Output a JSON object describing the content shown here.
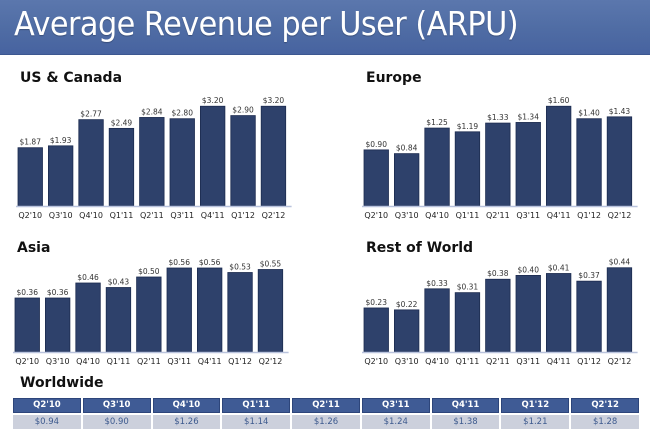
{
  "header": {
    "title": "Average Revenue per User (ARPU)"
  },
  "colors": {
    "header_bg": "#4f6ca4",
    "bar": "#2e416b",
    "table_head": "#3f5b95",
    "table_cell": "#ccd0dc"
  },
  "chart_data": [
    {
      "type": "bar",
      "title": "US & Canada",
      "categories": [
        "Q2'10",
        "Q3'10",
        "Q4'10",
        "Q1'11",
        "Q2'11",
        "Q3'11",
        "Q4'11",
        "Q1'12",
        "Q2'12"
      ],
      "values": [
        1.87,
        1.93,
        2.77,
        2.49,
        2.84,
        2.8,
        3.2,
        2.9,
        3.2
      ],
      "labels": [
        "$1.87",
        "$1.93",
        "$2.77",
        "$2.49",
        "$2.84",
        "$2.80",
        "$3.20",
        "$2.90",
        "$3.20"
      ],
      "xlabel": "",
      "ylabel": "",
      "ylim": [
        0,
        3.4
      ],
      "grid": false
    },
    {
      "type": "bar",
      "title": "Europe",
      "categories": [
        "Q2'10",
        "Q3'10",
        "Q4'10",
        "Q1'11",
        "Q2'11",
        "Q3'11",
        "Q4'11",
        "Q1'12",
        "Q2'12"
      ],
      "values": [
        0.9,
        0.84,
        1.25,
        1.19,
        1.33,
        1.34,
        1.6,
        1.4,
        1.43
      ],
      "labels": [
        "$0.90",
        "$0.84",
        "$1.25",
        "$1.19",
        "$1.33",
        "$1.34",
        "$1.60",
        "$1.40",
        "$1.43"
      ],
      "xlabel": "",
      "ylabel": "",
      "ylim": [
        0,
        1.7
      ],
      "grid": false
    },
    {
      "type": "bar",
      "title": "Asia",
      "categories": [
        "Q2'10",
        "Q3'10",
        "Q4'10",
        "Q1'11",
        "Q2'11",
        "Q3'11",
        "Q4'11",
        "Q1'12",
        "Q2'12"
      ],
      "values": [
        0.36,
        0.36,
        0.46,
        0.43,
        0.5,
        0.56,
        0.56,
        0.53,
        0.55
      ],
      "labels": [
        "$0.36",
        "$0.36",
        "$0.46",
        "$0.43",
        "$0.50",
        "$0.56",
        "$0.56",
        "$0.53",
        "$0.55"
      ],
      "xlabel": "",
      "ylabel": "",
      "ylim": [
        0,
        0.6
      ],
      "grid": false
    },
    {
      "type": "bar",
      "title": "Rest of World",
      "categories": [
        "Q2'10",
        "Q3'10",
        "Q4'10",
        "Q1'11",
        "Q2'11",
        "Q3'11",
        "Q4'11",
        "Q1'12",
        "Q2'12"
      ],
      "values": [
        0.23,
        0.22,
        0.33,
        0.31,
        0.38,
        0.4,
        0.41,
        0.37,
        0.44
      ],
      "labels": [
        "$0.23",
        "$0.22",
        "$0.33",
        "$0.31",
        "$0.38",
        "$0.40",
        "$0.41",
        "$0.37",
        "$0.44"
      ],
      "xlabel": "",
      "ylabel": "",
      "ylim": [
        0,
        0.47
      ],
      "grid": false
    },
    {
      "type": "table",
      "title": "Worldwide",
      "columns": [
        "Q2'10",
        "Q3'10",
        "Q4'10",
        "Q1'11",
        "Q2'11",
        "Q3'11",
        "Q4'11",
        "Q1'12",
        "Q2'12"
      ],
      "values": [
        "$0.94",
        "$0.90",
        "$1.26",
        "$1.14",
        "$1.26",
        "$1.24",
        "$1.38",
        "$1.21",
        "$1.28"
      ]
    }
  ]
}
